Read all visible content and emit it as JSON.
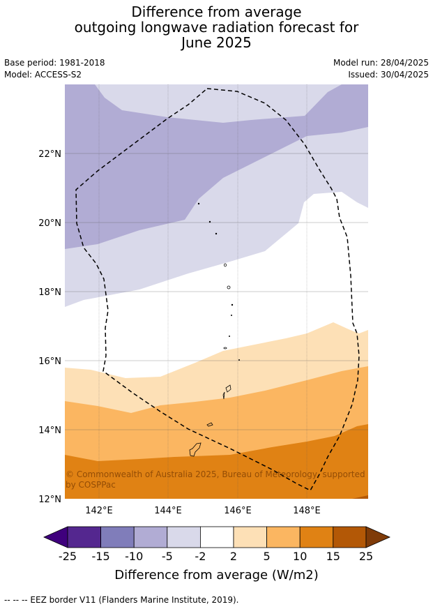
{
  "title": {
    "line1": "Difference from average",
    "line2": "outgoing longwave radiation forecast for",
    "line3": "June 2025"
  },
  "meta": {
    "base_period": "Base period: 1981-2018",
    "model": "Model: ACCESS-S2",
    "model_run": "Model run: 28/04/2025",
    "issued": "Issued: 30/04/2025"
  },
  "map": {
    "lat_labels": [
      "22°N",
      "20°N",
      "18°N",
      "16°N",
      "14°N",
      "12°N"
    ],
    "lon_labels": [
      "142°E",
      "144°E",
      "146°E",
      "148°E"
    ],
    "copyright": {
      "line1": "© Commonwealth of Australia 2025, Bureau of Meteorology, supported",
      "line2": "by COSPPac"
    }
  },
  "colorbar": {
    "ticks": [
      "-25",
      "-15",
      "-10",
      "-5",
      "-2",
      "2",
      "5",
      "10",
      "15",
      "25"
    ],
    "colors": [
      "#3f007d",
      "#54278f",
      "#807dba",
      "#b1acd4",
      "#d9d9ea",
      "#ffffff",
      "#fde0b6",
      "#fbb661",
      "#e08214",
      "#b35806",
      "#7f3b08"
    ],
    "label": "Difference from average (W/m2)"
  },
  "footer": "--  --  -- EEZ border V11 (Flanders Marine Institute, 2019)."
}
